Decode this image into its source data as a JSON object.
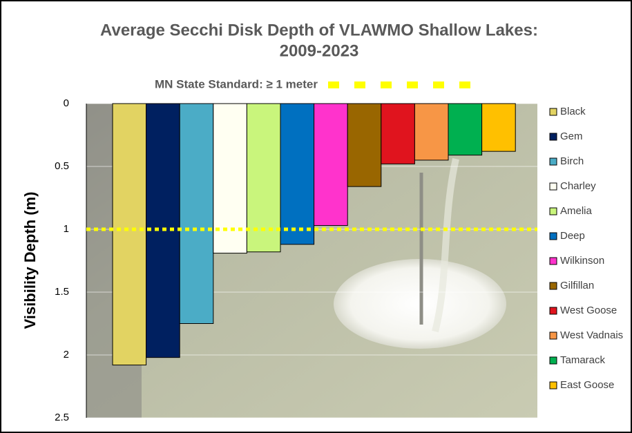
{
  "chart_data": {
    "type": "bar",
    "title": "Average Secchi Disk Depth of VLAWMO Shallow Lakes:",
    "subtitle": "2009-2023",
    "y_label": "Visibility Depth (m)",
    "categories": [
      "Black",
      "Gem",
      "Birch",
      "Charley",
      "Amelia",
      "Deep",
      "Wilkinson",
      "Gilfillan",
      "West Goose",
      "West Vadnais",
      "Tamarack",
      "East Goose"
    ],
    "values": [
      2.08,
      2.02,
      1.75,
      1.19,
      1.18,
      1.12,
      0.97,
      0.66,
      0.48,
      0.45,
      0.41,
      0.38
    ],
    "colors": [
      "#e2d362",
      "#002060",
      "#4bacc6",
      "#fffff2",
      "#c9f57c",
      "#0070c0",
      "#ff33cc",
      "#996600",
      "#e0141e",
      "#f79646",
      "#00b050",
      "#ffc000"
    ],
    "ylim": [
      0,
      2.5
    ],
    "yticks": [
      0,
      0.5,
      1,
      1.5,
      2,
      2.5
    ],
    "y_inverted": true,
    "grid": true,
    "legend": "right",
    "reference_line": {
      "value": 1,
      "label": "MN State Standard: ≥ 1 meter",
      "color": "#ffff00"
    }
  }
}
